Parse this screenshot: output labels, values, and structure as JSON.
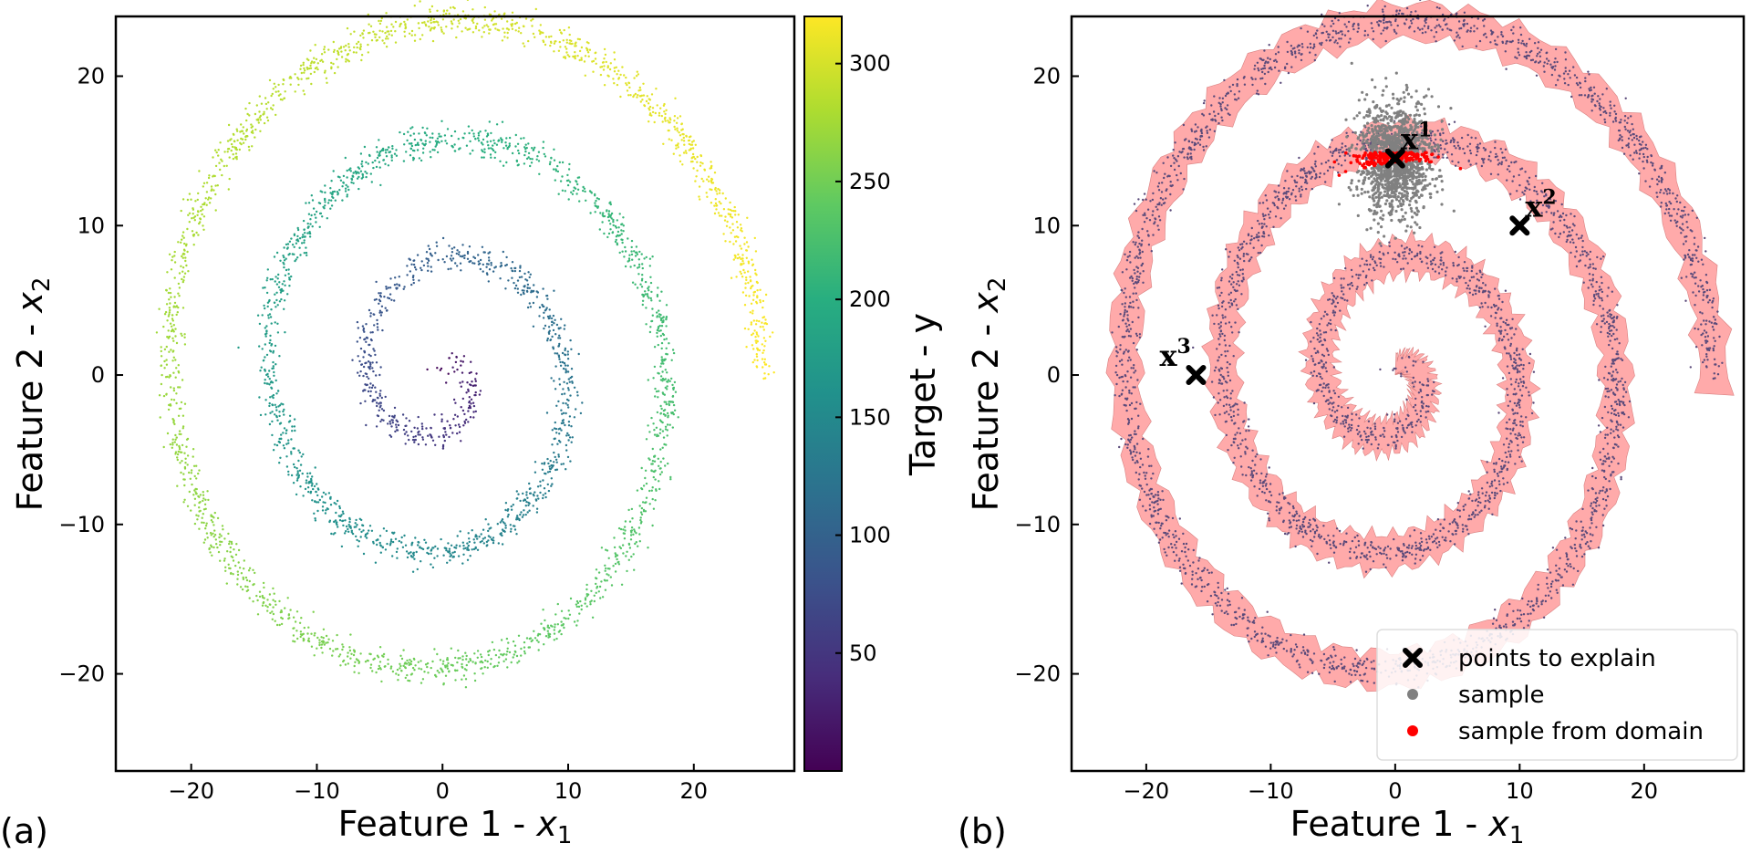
{
  "chart_data": [
    {
      "type": "scatter",
      "panel_label": "(a)",
      "xlabel_text": "Feature 1 - ",
      "xlabel_var": "x",
      "xlabel_sub": "1",
      "ylabel_text": "Feature 2 - ",
      "ylabel_var": "x",
      "ylabel_sub": "2",
      "xlim": [
        -26,
        28
      ],
      "ylim": [
        -26.5,
        24
      ],
      "xticks": [
        -20,
        -10,
        0,
        10,
        20
      ],
      "yticks": [
        -20,
        -10,
        0,
        10,
        20
      ],
      "xtick_labels": [
        "−20",
        "−10",
        "0",
        "10",
        "20"
      ],
      "ytick_labels": [
        "−20",
        "−10",
        "0",
        "10",
        "20"
      ],
      "series": [
        {
          "values_description_free": true,
          "t_range": [
            0,
            320
          ],
          "spiral": {
            "revolutions": 3.25,
            "max_radius": 25.6
          },
          "noise": 0.5,
          "n_points": 4000
        }
      ],
      "colorbar": {
        "label": "Target - y",
        "colormap": "viridis",
        "range": [
          0,
          320
        ],
        "ticks": [
          50,
          100,
          150,
          200,
          250,
          300
        ],
        "tick_labels": [
          "50",
          "100",
          "150",
          "200",
          "250",
          "300"
        ]
      },
      "grid": false
    },
    {
      "type": "scatter",
      "panel_label": "(b)",
      "xlabel_text": "Feature 1 - ",
      "xlabel_var": "x",
      "xlabel_sub": "1",
      "ylabel_text": "Feature 2 - ",
      "ylabel_var": "x",
      "ylabel_sub": "2",
      "xlim": [
        -26,
        28
      ],
      "ylim": [
        -26.5,
        24
      ],
      "xticks": [
        -20,
        -10,
        0,
        10,
        20
      ],
      "yticks": [
        -20,
        -10,
        0,
        10,
        20
      ],
      "xtick_labels": [
        "−20",
        "−10",
        "0",
        "10",
        "20"
      ],
      "ytick_labels": [
        "−20",
        "−10",
        "0",
        "10",
        "20"
      ],
      "points_to_explain": [
        {
          "label": "x",
          "sup": "1",
          "x": 0,
          "y": 14.5
        },
        {
          "label": "x",
          "sup": "2",
          "x": 10,
          "y": 10
        },
        {
          "label": "x",
          "sup": "3",
          "x": -16,
          "y": 0
        }
      ],
      "sample_center": [
        0,
        14.5
      ],
      "sample_spread": [
        1.5,
        1.8
      ],
      "domain_band_color": "#ffaaaa",
      "point_color": "#5a4a7a",
      "sample_color": "#808080",
      "domain_sample_color": "#ff0000",
      "legend": {
        "position": "lower-right",
        "entries": [
          {
            "label": "points to explain",
            "marker": "x",
            "color": "#000000"
          },
          {
            "label": "sample",
            "marker": "dot",
            "color": "#808080"
          },
          {
            "label": "sample from domain",
            "marker": "dot",
            "color": "#ff0000"
          }
        ]
      },
      "grid": false
    }
  ]
}
